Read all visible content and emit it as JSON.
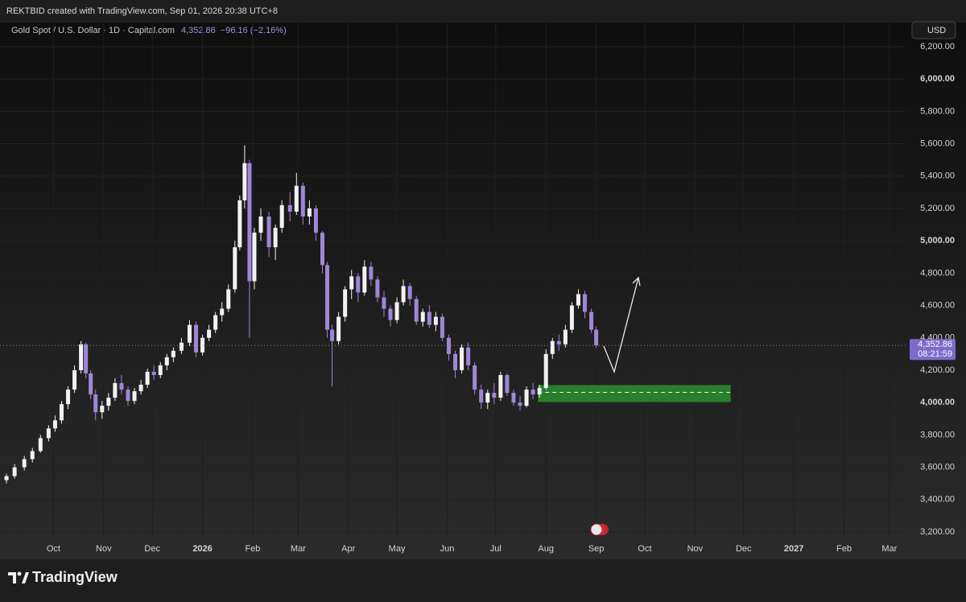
{
  "header": {
    "author_line": "REKTBID created with TradingView.com, Sep 01, 2026 20:38 UTC+8"
  },
  "chart_data": {
    "type": "candlestick",
    "title": "Gold Spot / U.S. Dollar · 1D · Capital.com",
    "last_price": {
      "value": 4352.86,
      "label": "4,352.86"
    },
    "change_label": "−96.16 (−2.16%)",
    "countdown": "08:21:59",
    "currency": "USD",
    "up_color": "#f2f2f2",
    "down_color": "#9f86d8",
    "grid": true,
    "xlim": [
      -33,
      526
    ],
    "ylim": [
      3165,
      6349
    ],
    "xticks": [
      {
        "value": 0,
        "label": "Oct"
      },
      {
        "value": 31,
        "label": "Nov"
      },
      {
        "value": 61,
        "label": "Dec"
      },
      {
        "value": 92,
        "label": "2026"
      },
      {
        "value": 123,
        "label": "Feb"
      },
      {
        "value": 151,
        "label": "Mar"
      },
      {
        "value": 182,
        "label": "Apr"
      },
      {
        "value": 212,
        "label": "May"
      },
      {
        "value": 243,
        "label": "Jun"
      },
      {
        "value": 273,
        "label": "Jul"
      },
      {
        "value": 304,
        "label": "Aug"
      },
      {
        "value": 335,
        "label": "Sep"
      },
      {
        "value": 365,
        "label": "Oct"
      },
      {
        "value": 396,
        "label": "Nov"
      },
      {
        "value": 426,
        "label": "Dec"
      },
      {
        "value": 457,
        "label": "2027"
      },
      {
        "value": 488,
        "label": "Feb"
      },
      {
        "value": 516,
        "label": "Mar"
      }
    ],
    "yticks": [
      {
        "value": 3200,
        "label": "3,200.00"
      },
      {
        "value": 3400,
        "label": "3,400.00"
      },
      {
        "value": 3600,
        "label": "3,600.00"
      },
      {
        "value": 3800,
        "label": "3,800.00"
      },
      {
        "value": 4000,
        "label": "4,000.00"
      },
      {
        "value": 4200,
        "label": "4,200.00"
      },
      {
        "value": 4400,
        "label": "4,400.00"
      },
      {
        "value": 4600,
        "label": "4,600.00"
      },
      {
        "value": 4800,
        "label": "4,800.00"
      },
      {
        "value": 5000,
        "label": "5,000.00"
      },
      {
        "value": 5200,
        "label": "5,200.00"
      },
      {
        "value": 5400,
        "label": "5,400.00"
      },
      {
        "value": 5600,
        "label": "5,600.00"
      },
      {
        "value": 5800,
        "label": "5,800.00"
      },
      {
        "value": 6000,
        "label": "6,000.00"
      },
      {
        "value": 6200,
        "label": "6,200.00"
      }
    ],
    "zone": {
      "start": 299,
      "end": 418,
      "low": 4003,
      "high": 4108,
      "mid": 4063,
      "color": "#2a8a2f"
    },
    "x": [
      -29,
      -24,
      -18,
      -13,
      -8,
      -3,
      1,
      5,
      9,
      13,
      17,
      20,
      23,
      26,
      30,
      34,
      38,
      42,
      46,
      50,
      54,
      58,
      62,
      66,
      70,
      74,
      79,
      84,
      88,
      92,
      96,
      100,
      104,
      108,
      112,
      115,
      118,
      121,
      124,
      128,
      133,
      137,
      141,
      146,
      150,
      154,
      158,
      162,
      166,
      169,
      172,
      176,
      180,
      184,
      188,
      192,
      196,
      200,
      204,
      208,
      212,
      216,
      220,
      224,
      228,
      232,
      236,
      240,
      244,
      248,
      252,
      256,
      260,
      264,
      268,
      272,
      276,
      280,
      284,
      288,
      292,
      296,
      300,
      304,
      308,
      312,
      316,
      320,
      324,
      328,
      332,
      335
    ],
    "open": [
      3520,
      3545,
      3600,
      3650,
      3700,
      3780,
      3840,
      3890,
      3990,
      4080,
      4200,
      4360,
      4180,
      4050,
      3940,
      3980,
      4030,
      4120,
      4080,
      4010,
      4070,
      4110,
      4190,
      4170,
      4230,
      4280,
      4320,
      4370,
      4480,
      4310,
      4400,
      4450,
      4540,
      4580,
      4700,
      4960,
      5250,
      5480,
      4750,
      5050,
      5150,
      4960,
      5080,
      5220,
      5180,
      5340,
      5150,
      5200,
      5050,
      4850,
      4450,
      4380,
      4530,
      4700,
      4780,
      4680,
      4840,
      4760,
      4650,
      4580,
      4510,
      4620,
      4720,
      4640,
      4500,
      4560,
      4480,
      4530,
      4400,
      4300,
      4200,
      4340,
      4230,
      4080,
      4000,
      4060,
      4030,
      4170,
      4060,
      4000,
      3980,
      4080,
      4050,
      4090,
      4300,
      4380,
      4360,
      4450,
      4600,
      4670,
      4560,
      4450
    ],
    "high": [
      3560,
      3620,
      3670,
      3720,
      3800,
      3860,
      3920,
      4010,
      4100,
      4230,
      4380,
      4370,
      4200,
      4080,
      4010,
      4060,
      4150,
      4170,
      4100,
      4090,
      4140,
      4210,
      4230,
      4250,
      4300,
      4340,
      4400,
      4510,
      4500,
      4420,
      4480,
      4560,
      4620,
      4730,
      5000,
      5280,
      5590,
      5500,
      5080,
      5200,
      5180,
      5100,
      5250,
      5300,
      5420,
      5360,
      5250,
      5220,
      5060,
      4870,
      4480,
      4560,
      4720,
      4820,
      4800,
      4880,
      4870,
      4780,
      4690,
      4600,
      4650,
      4760,
      4740,
      4660,
      4580,
      4600,
      4560,
      4550,
      4420,
      4320,
      4360,
      4370,
      4250,
      4110,
      4080,
      4120,
      4190,
      4180,
      4080,
      4040,
      4100,
      4120,
      4110,
      4330,
      4400,
      4420,
      4480,
      4620,
      4700,
      4690,
      4580,
      4470
    ],
    "low": [
      3500,
      3530,
      3580,
      3630,
      3690,
      3760,
      3820,
      3870,
      3960,
      4060,
      4180,
      4150,
      4020,
      3890,
      3900,
      3950,
      4010,
      4050,
      3980,
      3990,
      4050,
      4090,
      4140,
      4150,
      4200,
      4250,
      4300,
      4350,
      4280,
      4290,
      4380,
      4430,
      4500,
      4560,
      4680,
      4940,
      5200,
      4400,
      4700,
      5000,
      4900,
      4880,
      5050,
      5120,
      5160,
      5100,
      5100,
      5000,
      4800,
      4400,
      4100,
      4360,
      4500,
      4640,
      4620,
      4660,
      4720,
      4620,
      4530,
      4470,
      4490,
      4600,
      4600,
      4480,
      4470,
      4460,
      4440,
      4380,
      4260,
      4150,
      4180,
      4200,
      4050,
      3960,
      3960,
      3990,
      4010,
      4040,
      3980,
      3950,
      3970,
      4020,
      4030,
      4080,
      4270,
      4320,
      4340,
      4430,
      4580,
      4520,
      4430,
      4340
    ],
    "close": [
      3545,
      3600,
      3650,
      3700,
      3780,
      3840,
      3890,
      3990,
      4080,
      4200,
      4360,
      4180,
      4050,
      3940,
      3980,
      4030,
      4120,
      4080,
      4010,
      4070,
      4110,
      4190,
      4170,
      4230,
      4280,
      4320,
      4370,
      4480,
      4310,
      4400,
      4450,
      4540,
      4580,
      4700,
      4960,
      5250,
      5480,
      4750,
      5050,
      5150,
      4960,
      5080,
      5220,
      5180,
      5340,
      5150,
      5200,
      5050,
      4850,
      4450,
      4380,
      4530,
      4700,
      4780,
      4680,
      4840,
      4760,
      4650,
      4580,
      4510,
      4620,
      4720,
      4640,
      4500,
      4560,
      4480,
      4530,
      4400,
      4300,
      4200,
      4340,
      4230,
      4080,
      4000,
      4060,
      4030,
      4170,
      4060,
      4000,
      3980,
      4080,
      4050,
      4090,
      4300,
      4380,
      4360,
      4450,
      4600,
      4670,
      4560,
      4450,
      4352.86
    ]
  },
  "footer": {
    "brand": "TradingView"
  }
}
